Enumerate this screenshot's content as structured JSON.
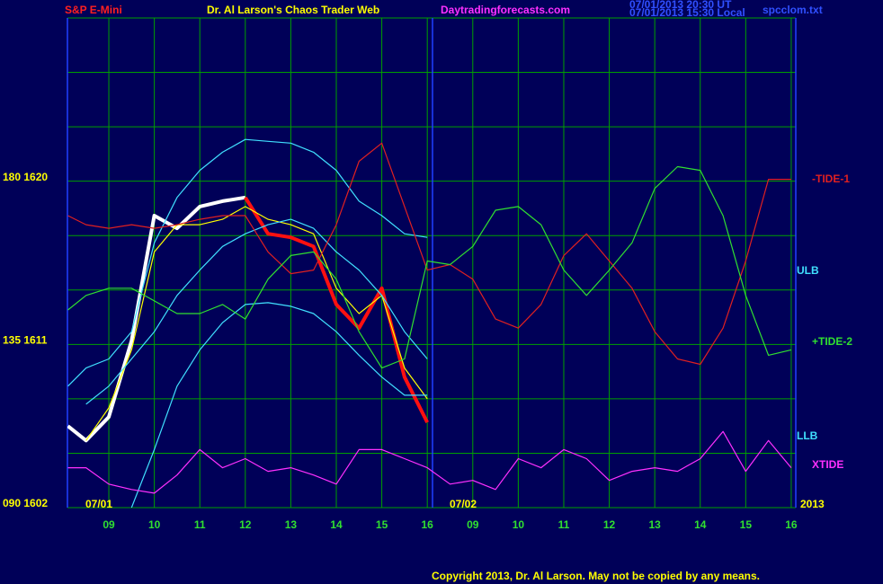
{
  "chart_data": {
    "type": "line",
    "title": "Dr. Al Larson's Chaos Trader Web",
    "annotations": [
      "S&P E-Mini",
      "Daytradingforecasts.com",
      "07/01/2013 20:30 UT",
      "07/01/2013 15:30 Local",
      "spcclom.txt",
      "07/01",
      "07/02",
      "2013",
      "Copyright 2013, Dr. Al Larson. May not be copied by any means."
    ],
    "x": [
      0.1,
      0.5,
      1,
      1.5,
      2,
      2.5,
      3,
      3.5,
      4,
      4.5,
      5,
      5.5,
      6,
      6.5,
      7,
      7.5,
      8,
      8.5,
      9,
      9.5,
      10,
      10.5,
      11,
      11.5,
      12,
      12.5,
      13,
      13.5,
      14,
      14.5,
      15,
      15.5,
      16
    ],
    "xlim": [
      0.09,
      16.1
    ],
    "xticks": [
      {
        "value": 1,
        "label": "09"
      },
      {
        "value": 2,
        "label": "10"
      },
      {
        "value": 3,
        "label": "11"
      },
      {
        "value": 4,
        "label": "12"
      },
      {
        "value": 5,
        "label": "13"
      },
      {
        "value": 6,
        "label": "14"
      },
      {
        "value": 7,
        "label": "15"
      },
      {
        "value": 8,
        "label": "16"
      },
      {
        "value": 9,
        "label": "09"
      },
      {
        "value": 10,
        "label": "10"
      },
      {
        "value": 11,
        "label": "11"
      },
      {
        "value": 12,
        "label": "12"
      },
      {
        "value": 13,
        "label": "13"
      },
      {
        "value": 14,
        "label": "14"
      },
      {
        "value": 15,
        "label": "15"
      },
      {
        "value": 16,
        "label": "16"
      }
    ],
    "ylim": [
      1602,
      1629
    ],
    "yticks": [
      {
        "value": 1620,
        "label": "180 1620"
      },
      {
        "value": 1611,
        "label": "135 1611"
      },
      {
        "value": 1602,
        "label": "090 1602"
      }
    ],
    "ygrid": [
      1602,
      1605,
      1608,
      1611,
      1614,
      1617,
      1620,
      1623,
      1626,
      1629
    ],
    "grid": true,
    "series": [
      {
        "color": "#ffffff",
        "values": [
          1606.5,
          1605.7,
          1607.0,
          1611.2,
          1618.1,
          1617.4,
          1618.6,
          1618.9,
          1619.1,
          null,
          null,
          null,
          null,
          null,
          null,
          null,
          null,
          null,
          null,
          null,
          null,
          null,
          null,
          null,
          null,
          null,
          null,
          null,
          null,
          null,
          null,
          null,
          null
        ]
      },
      {
        "color": "#ff1010",
        "values": [
          null,
          null,
          null,
          null,
          null,
          null,
          null,
          null,
          1619.1,
          1617.1,
          1616.9,
          1616.4,
          1613.2,
          1611.9,
          1614.1,
          1609.2,
          1606.7,
          null,
          null,
          null,
          null,
          null,
          null,
          null,
          null,
          null,
          null,
          null,
          null,
          null,
          null,
          null,
          null
        ]
      },
      {
        "color": "#ffff00",
        "values": [
          null,
          1605.7,
          1607.5,
          1610.7,
          1616.1,
          1617.6,
          1617.6,
          1617.9,
          1618.6,
          1617.9,
          1617.6,
          1617.1,
          1614.1,
          1612.7,
          1613.7,
          1609.7,
          1608.0,
          null,
          null,
          null,
          null,
          null,
          null,
          null,
          null,
          null,
          null,
          null,
          null,
          null,
          null,
          null,
          null
        ]
      },
      {
        "name": "ULB",
        "color": "#40e0ff",
        "values": [
          1608.7,
          1609.7,
          1610.2,
          1611.7,
          1616.6,
          1619.1,
          1620.6,
          1621.6,
          1622.3,
          1622.2,
          1622.1,
          1621.6,
          1620.6,
          1618.9,
          1618.1,
          1617.1,
          1616.9,
          null,
          null,
          null,
          null,
          null,
          null,
          null,
          null,
          null,
          null,
          null,
          null,
          null,
          null,
          null,
          null
        ]
      },
      {
        "color": "#40e0ff",
        "values": [
          null,
          1607.7,
          1608.7,
          1610.2,
          1611.7,
          1613.7,
          1615.1,
          1616.4,
          1617.1,
          1617.6,
          1617.9,
          1617.4,
          1616.1,
          1615.1,
          1613.7,
          1611.7,
          1610.2,
          null,
          null,
          null,
          null,
          null,
          null,
          null,
          null,
          null,
          null,
          null,
          null,
          null,
          null,
          null,
          null
        ]
      },
      {
        "name": "LLB",
        "color": "#40e0ff",
        "values": [
          null,
          null,
          null,
          1602.0,
          1605.2,
          1608.7,
          1610.7,
          1612.2,
          1613.2,
          1613.3,
          1613.1,
          1612.7,
          1611.7,
          1610.4,
          1609.2,
          1608.2,
          1608.2,
          null,
          null,
          null,
          null,
          null,
          null,
          null,
          null,
          null,
          null,
          null,
          null,
          null,
          null,
          null,
          null
        ]
      },
      {
        "name": "-TIDE-1",
        "color": "#e02020",
        "values": [
          1618.1,
          1617.6,
          1617.4,
          1617.6,
          1617.4,
          1617.6,
          1617.9,
          1618.1,
          1618.1,
          1616.1,
          1614.9,
          1615.1,
          1617.6,
          1621.1,
          1622.1,
          1618.6,
          1615.1,
          1615.4,
          1614.6,
          1612.4,
          1611.9,
          1613.2,
          1615.9,
          1617.1,
          1615.6,
          1614.1,
          1611.7,
          1610.2,
          1609.9,
          1611.9,
          1615.6,
          1620.1,
          1620.1
        ]
      },
      {
        "name": "+TIDE-2",
        "color": "#30e030",
        "values": [
          1612.9,
          1613.7,
          1614.1,
          1614.1,
          1613.4,
          1612.7,
          1612.7,
          1613.2,
          1612.4,
          1614.6,
          1615.9,
          1616.1,
          1614.6,
          1611.7,
          1609.7,
          1610.2,
          1615.6,
          1615.4,
          1616.4,
          1618.4,
          1618.6,
          1617.6,
          1615.1,
          1613.7,
          1615.1,
          1616.6,
          1619.6,
          1620.8,
          1620.6,
          1618.1,
          1613.7,
          1610.4,
          1610.7
        ]
      },
      {
        "name": "XTIDE",
        "color": "#ff30ff",
        "values": [
          1604.2,
          1604.2,
          1603.3,
          1603.0,
          1602.8,
          1603.8,
          1605.2,
          1604.2,
          1604.7,
          1604.0,
          1604.2,
          1603.8,
          1603.3,
          1605.2,
          1605.2,
          1604.7,
          1604.2,
          1603.3,
          1603.5,
          1603.0,
          1604.7,
          1604.2,
          1605.2,
          1604.7,
          1603.5,
          1604.0,
          1604.2,
          1604.0,
          1604.7,
          1606.2,
          1604.0,
          1605.7,
          1604.2
        ]
      }
    ]
  }
}
